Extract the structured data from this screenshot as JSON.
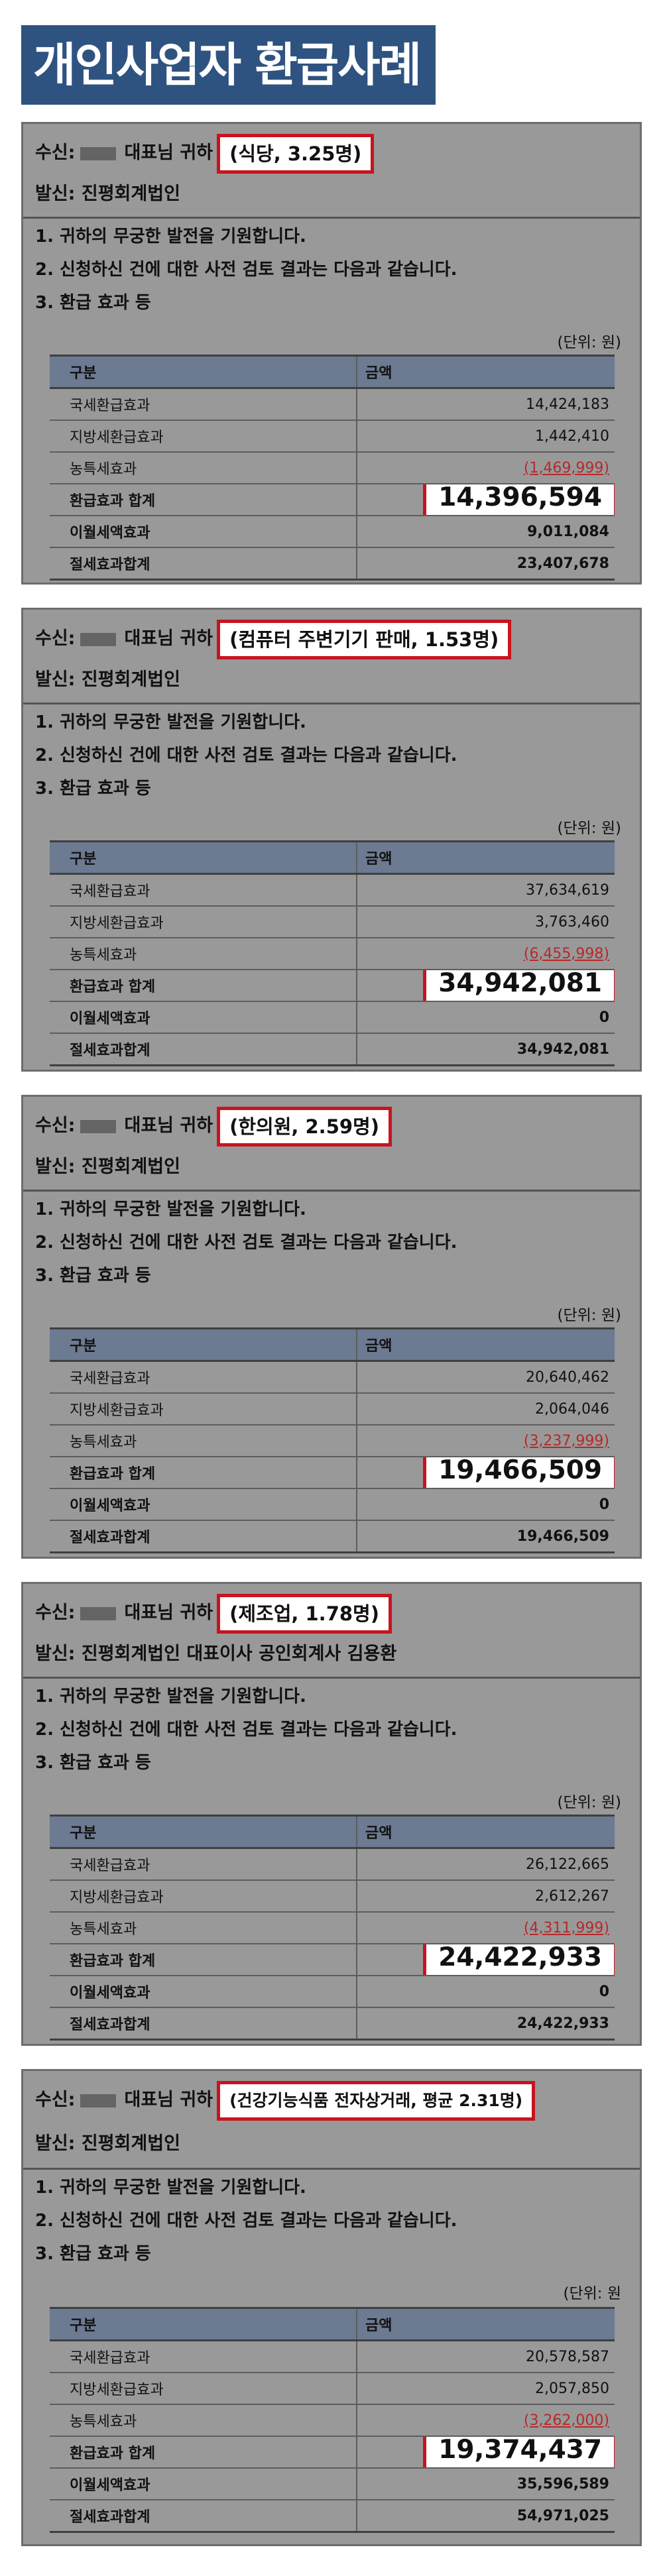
{
  "page_title": "개인사업자 환급사례",
  "common": {
    "recipient_label": "수신:",
    "recipient_suffix": "대표님 귀하",
    "notes": [
      "1. 귀하의 무궁한 발전을 기원합니다.",
      "2. 신청하신 건에 대한 사전 검토 결과는 다음과 같습니다.",
      "3. 환급 효과 등"
    ],
    "unit": "(단위: 원)",
    "col_category": "구분",
    "col_amount": "금액",
    "row_labels": [
      "국세환급효과",
      "지방세환급효과",
      "농특세효과",
      "환급효과 합계",
      "이월세액효과",
      "절세효과합계"
    ]
  },
  "cases": [
    {
      "highlight": "(식당, 3.25명)",
      "sender": "발신: 진평회계법인",
      "unit": "(단위: 원)",
      "values": [
        "14,424,183",
        "1,442,410",
        "(1,469,999)",
        "14,396,594",
        "9,011,084",
        "23,407,678"
      ]
    },
    {
      "highlight": "(컴퓨터 주변기기 판매, 1.53명)",
      "sender": "발신: 진평회계법인",
      "unit": "(단위: 원)",
      "values": [
        "37,634,619",
        "3,763,460",
        "(6,455,998)",
        "34,942,081",
        "0",
        "34,942,081"
      ]
    },
    {
      "highlight": "(한의원, 2.59명)",
      "sender": "발신: 진평회계법인",
      "unit": "(단위: 원)",
      "values": [
        "20,640,462",
        "2,064,046",
        "(3,237,999)",
        "19,466,509",
        "0",
        "19,466,509"
      ]
    },
    {
      "highlight": "(제조업, 1.78명)",
      "sender": "발신: 진평회계법인 대표이사 공인회계사 김용환",
      "unit": "(단위: 원)",
      "values": [
        "26,122,665",
        "2,612,267",
        "(4,311,999)",
        "24,422,933",
        "0",
        "24,422,933"
      ]
    },
    {
      "highlight": "(건강기능식품 전자상거래, 평균 2.31명)",
      "sender": "발신: 진평회계법인",
      "unit": "(단위: 원",
      "values": [
        "20,578,587",
        "2,057,850",
        "(3,262,000)",
        "19,374,437",
        "35,596,589",
        "54,971,025"
      ]
    }
  ]
}
